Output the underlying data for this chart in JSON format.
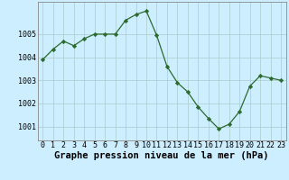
{
  "x": [
    0,
    1,
    2,
    3,
    4,
    5,
    6,
    7,
    8,
    9,
    10,
    11,
    12,
    13,
    14,
    15,
    16,
    17,
    18,
    19,
    20,
    21,
    22,
    23
  ],
  "y": [
    1003.9,
    1004.35,
    1004.7,
    1004.5,
    1004.8,
    1005.0,
    1005.0,
    1005.0,
    1005.6,
    1005.85,
    1006.0,
    1004.95,
    1003.6,
    1002.9,
    1002.5,
    1001.85,
    1001.35,
    1000.9,
    1001.1,
    1001.65,
    1002.75,
    1003.2,
    1003.1,
    1003.0
  ],
  "line_color": "#2d6a2d",
  "marker_color": "#2d6a2d",
  "bg_color": "#cceeff",
  "grid_color": "#aacccc",
  "xlabel": "Graphe pression niveau de la mer (hPa)",
  "xlabel_fontsize": 7.5,
  "ytick_labels": [
    "1001",
    "1002",
    "1003",
    "1004",
    "1005"
  ],
  "ytick_values": [
    1001,
    1002,
    1003,
    1004,
    1005
  ],
  "ylim": [
    1000.4,
    1006.4
  ],
  "xlim": [
    -0.5,
    23.5
  ],
  "xtick_labels": [
    "0",
    "1",
    "2",
    "3",
    "4",
    "5",
    "6",
    "7",
    "8",
    "9",
    "10",
    "11",
    "12",
    "13",
    "14",
    "15",
    "16",
    "17",
    "18",
    "19",
    "20",
    "21",
    "22",
    "23"
  ],
  "tick_fontsize": 6.0,
  "border_color": "#888888"
}
